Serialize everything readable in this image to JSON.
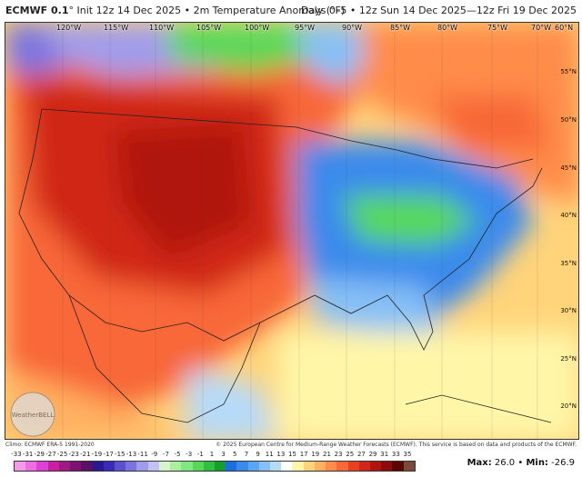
{
  "header": {
    "model": "ECMWF 0.1",
    "degree": "°",
    "init": " Init 12z 14 Dec 2025 • 2m Temperature Anomaly (°F)",
    "range": "Days 0–5 • 12z Sun 14 Dec 2025—12z Fri 19 Dec 2025"
  },
  "map": {
    "top_labels": [
      "120°W",
      "115°W",
      "110°W",
      "105°W",
      "100°W",
      "95°W",
      "90°W",
      "85°W",
      "80°W",
      "75°W",
      "70°W",
      "60°N"
    ],
    "right_labels": [
      "55°N",
      "50°N",
      "45°N",
      "40°N",
      "35°N",
      "30°N",
      "25°N",
      "20°N"
    ],
    "logo_text": "WeatherBELL"
  },
  "footer": {
    "climo": "Climo: ECMWF ERA-5 1991-2020",
    "copyright": "© 2025 European Centre for Medium-Range Weather Forecasts (ECMWF). This service is based on data and products of the ECMWF."
  },
  "legend": {
    "ticks": [
      "-33",
      "-31",
      "-29",
      "-27",
      "-25",
      "-23",
      "-21",
      "-19",
      "-17",
      "-15",
      "-13",
      "-11",
      "-9",
      "-7",
      "-5",
      "-3",
      "-1",
      "1",
      "3",
      "5",
      "7",
      "9",
      "11",
      "13",
      "15",
      "17",
      "19",
      "21",
      "23",
      "25",
      "27",
      "29",
      "31",
      "33",
      "35"
    ],
    "colors": [
      "#f29be8",
      "#ec6fe0",
      "#e040d6",
      "#c8209f",
      "#a01a86",
      "#7a1470",
      "#5a1064",
      "#2a1890",
      "#3b2ab8",
      "#5a50d0",
      "#7a74e0",
      "#a09ceb",
      "#c4c0f3",
      "#d6f5c8",
      "#aaf0a0",
      "#80e880",
      "#58d858",
      "#2ec040",
      "#16a02a",
      "#1a6ee0",
      "#3a8aec",
      "#5aa6f2",
      "#86c0f6",
      "#b6dafa",
      "#ffffff",
      "#fff6a8",
      "#ffd47a",
      "#ffb060",
      "#ff8c48",
      "#f86838",
      "#e84020",
      "#d02818",
      "#b01410",
      "#8a0c0c",
      "#5a0606",
      "#7a4a3a"
    ],
    "max_label": "Max:",
    "max": "26.0",
    "sep": " • ",
    "min_label": "Min:",
    "min": "-26.9"
  }
}
